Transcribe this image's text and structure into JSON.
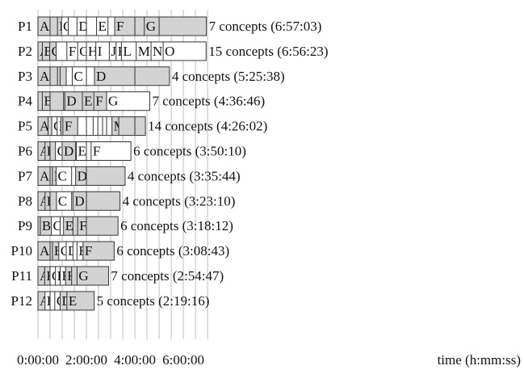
{
  "chart_data": {
    "type": "bar",
    "orientation": "horizontal",
    "x_unit": "h:mm:ss",
    "xlim": [
      0,
      25200
    ],
    "grid": true,
    "x_axis_label": "time (h:mm:ss)",
    "x_ticks": [
      {
        "value": 0,
        "label": "0:00:00"
      },
      {
        "value": 7200,
        "label": "2:00:00"
      },
      {
        "value": 14400,
        "label": "4:00:00"
      },
      {
        "value": 21600,
        "label": "6:00:00"
      }
    ],
    "colors": {
      "shaded": "#d3d3d3",
      "unshaded": "#ffffff",
      "grid": "#bfbfbf"
    },
    "rows": [
      {
        "label": "P1",
        "summary": "7 concepts (6:57:03)",
        "total_seconds": 25023,
        "segments": [
          [
            "A",
            0,
            true
          ],
          [
            "",
            1800,
            true
          ],
          [
            "B",
            2900,
            true
          ],
          [
            "C",
            3500,
            false
          ],
          [
            "",
            4500,
            false
          ],
          [
            "D",
            5800,
            false
          ],
          [
            "",
            7200,
            false
          ],
          [
            "E",
            8700,
            false
          ],
          [
            "",
            10400,
            false
          ],
          [
            "F",
            11400,
            true
          ],
          [
            "",
            14400,
            true
          ],
          [
            "G",
            15800,
            true
          ],
          [
            "",
            18000,
            true
          ]
        ]
      },
      {
        "label": "P2",
        "summary": "15 concepts (6:56:23)",
        "total_seconds": 24983,
        "segments": [
          [
            "A",
            0,
            true
          ],
          [
            "B",
            650,
            true
          ],
          [
            "C",
            1750,
            true
          ],
          [
            "",
            2700,
            false
          ],
          [
            "F",
            4300,
            false
          ],
          [
            "G",
            5900,
            false
          ],
          [
            "H",
            7200,
            false
          ],
          [
            "I",
            8600,
            false
          ],
          [
            "J",
            10600,
            false
          ],
          [
            "K",
            11600,
            false
          ],
          [
            "L",
            12400,
            false
          ],
          [
            "M",
            14600,
            false
          ],
          [
            "N",
            16800,
            false
          ],
          [
            "O",
            18600,
            false
          ]
        ]
      },
      {
        "label": "P3",
        "summary": "4 concepts (5:25:38)",
        "total_seconds": 19538,
        "segments": [
          [
            "A",
            0,
            true
          ],
          [
            "",
            1800,
            true
          ],
          [
            "B",
            2900,
            true
          ],
          [
            "",
            3300,
            true
          ],
          [
            "",
            4200,
            false
          ],
          [
            "C",
            5100,
            false
          ],
          [
            "",
            7200,
            false
          ],
          [
            "",
            8600,
            false
          ],
          [
            "D",
            8400,
            true
          ],
          [
            "",
            14400,
            true
          ]
        ]
      },
      {
        "label": "P4",
        "summary": "7 concepts (4:36:46)",
        "total_seconds": 16606,
        "segments": [
          [
            "",
            0,
            true
          ],
          [
            "B",
            650,
            true
          ],
          [
            "",
            1800,
            true
          ],
          [
            "",
            3800,
            true
          ],
          [
            "D",
            4000,
            true
          ],
          [
            "",
            7200,
            true
          ],
          [
            "E",
            6600,
            true
          ],
          [
            "F",
            8300,
            true
          ],
          [
            "G",
            10200,
            false
          ]
        ]
      },
      {
        "label": "P5",
        "summary": "14 concepts (4:26:02)",
        "total_seconds": 15962,
        "segments": [
          [
            "A",
            0,
            true
          ],
          [
            "",
            1500,
            true
          ],
          [
            "C",
            2050,
            false
          ],
          [
            "D",
            2850,
            false
          ],
          [
            "",
            3400,
            true
          ],
          [
            "F",
            3700,
            true
          ],
          [
            "",
            5900,
            false
          ],
          [
            "",
            7200,
            false
          ],
          [
            "",
            8200,
            false
          ],
          [
            "",
            8900,
            false
          ],
          [
            "",
            9600,
            false
          ],
          [
            "",
            10200,
            false
          ],
          [
            "M",
            11000,
            true
          ],
          [
            "",
            12000,
            true
          ],
          [
            "",
            14400,
            true
          ]
        ]
      },
      {
        "label": "P6",
        "summary": "6 concepts (3:50:10)",
        "total_seconds": 13810,
        "segments": [
          [
            "A",
            0,
            true
          ],
          [
            "B",
            1050,
            true
          ],
          [
            "",
            1800,
            true
          ],
          [
            "C",
            2600,
            false
          ],
          [
            "D",
            3600,
            true
          ],
          [
            "",
            5600,
            false
          ],
          [
            "E",
            5700,
            false
          ],
          [
            "",
            7200,
            false
          ],
          [
            "F",
            7900,
            false
          ]
        ]
      },
      {
        "label": "P7",
        "summary": "4 concepts (3:35:44)",
        "total_seconds": 12944,
        "segments": [
          [
            "A",
            0,
            true
          ],
          [
            "",
            1800,
            true
          ],
          [
            "B",
            2150,
            true
          ],
          [
            "C",
            2700,
            false
          ],
          [
            "",
            5000,
            false
          ],
          [
            "D",
            5600,
            true
          ],
          [
            "",
            7200,
            true
          ]
        ]
      },
      {
        "label": "P8",
        "summary": "4 concepts (3:23:10)",
        "total_seconds": 12190,
        "segments": [
          [
            "A",
            0,
            true
          ],
          [
            "B",
            1050,
            true
          ],
          [
            "",
            1800,
            true
          ],
          [
            "C",
            2750,
            false
          ],
          [
            "",
            5000,
            false
          ],
          [
            "D",
            5200,
            true
          ],
          [
            "",
            7200,
            true
          ]
        ]
      },
      {
        "label": "P9",
        "summary": "6 concepts (3:18:12)",
        "total_seconds": 11892,
        "segments": [
          [
            "A",
            0,
            true
          ],
          [
            "B",
            350,
            true
          ],
          [
            "C",
            2000,
            false
          ],
          [
            "",
            3300,
            false
          ],
          [
            "E",
            3800,
            true
          ],
          [
            "",
            5200,
            true
          ],
          [
            "F",
            5900,
            true
          ],
          [
            "",
            7200,
            true
          ]
        ]
      },
      {
        "label": "P10",
        "summary": "6 concepts (3:08:43)",
        "total_seconds": 11323,
        "segments": [
          [
            "A",
            0,
            true
          ],
          [
            "",
            1800,
            true
          ],
          [
            "B",
            2150,
            true
          ],
          [
            "C",
            3100,
            false
          ],
          [
            "D",
            4200,
            false
          ],
          [
            "",
            5200,
            false
          ],
          [
            "E",
            5800,
            false
          ],
          [
            "F",
            6700,
            true
          ]
        ]
      },
      {
        "label": "P11",
        "summary": "7 concepts (2:54:47)",
        "total_seconds": 10487,
        "segments": [
          [
            "A",
            0,
            true
          ],
          [
            "B",
            1000,
            true
          ],
          [
            "C",
            1800,
            false
          ],
          [
            "D",
            2600,
            false
          ],
          [
            "E",
            3300,
            false
          ],
          [
            "F",
            4100,
            true
          ],
          [
            "",
            5000,
            true
          ],
          [
            "G",
            5800,
            true
          ]
        ]
      },
      {
        "label": "P12",
        "summary": "5 concepts (2:19:16)",
        "total_seconds": 8356,
        "segments": [
          [
            "A",
            0,
            true
          ],
          [
            "B",
            1050,
            false
          ],
          [
            "",
            1800,
            false
          ],
          [
            "C",
            2500,
            false
          ],
          [
            "D",
            3300,
            true
          ],
          [
            "E",
            4300,
            true
          ]
        ]
      }
    ]
  }
}
